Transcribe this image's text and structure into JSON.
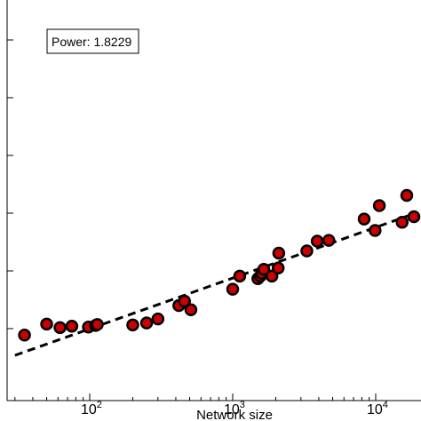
{
  "chart_data": {
    "type": "scatter",
    "xlabel": "Network size",
    "ylabel": "",
    "x_scale": "log",
    "y_scale": "log",
    "xlim": [
      28,
      19000
    ],
    "xticks": [
      {
        "value": 100,
        "base": "10",
        "exp": "2"
      },
      {
        "value": 1000,
        "base": "10",
        "exp": "3"
      },
      {
        "value": 10000,
        "base": "10",
        "exp": "4"
      }
    ],
    "grid": false,
    "annotation": "Power: 1.8229",
    "fit_line": {
      "style": "dashed",
      "color": "#000000"
    },
    "marker_color": "#cc0000",
    "marker_edge_color": "#000000",
    "series": [
      {
        "points": [
          {
            "x": 35,
            "y": 40
          },
          {
            "x": 50,
            "y": 62
          },
          {
            "x": 62,
            "y": 54
          },
          {
            "x": 75,
            "y": 57
          },
          {
            "x": 98,
            "y": 55
          },
          {
            "x": 110,
            "y": 59
          },
          {
            "x": 113,
            "y": 61
          },
          {
            "x": 200,
            "y": 60
          },
          {
            "x": 250,
            "y": 65
          },
          {
            "x": 300,
            "y": 76
          },
          {
            "x": 420,
            "y": 130
          },
          {
            "x": 460,
            "y": 155
          },
          {
            "x": 510,
            "y": 110
          },
          {
            "x": 1000,
            "y": 250
          },
          {
            "x": 1120,
            "y": 420
          },
          {
            "x": 1500,
            "y": 380
          },
          {
            "x": 1560,
            "y": 420
          },
          {
            "x": 1600,
            "y": 470
          },
          {
            "x": 1650,
            "y": 550
          },
          {
            "x": 1880,
            "y": 420
          },
          {
            "x": 2080,
            "y": 580
          },
          {
            "x": 2100,
            "y": 1050
          },
          {
            "x": 3300,
            "y": 1150
          },
          {
            "x": 3900,
            "y": 1700
          },
          {
            "x": 4700,
            "y": 1750
          },
          {
            "x": 8300,
            "y": 4100
          },
          {
            "x": 9900,
            "y": 2600
          },
          {
            "x": 10600,
            "y": 7000
          },
          {
            "x": 15300,
            "y": 3600
          },
          {
            "x": 16500,
            "y": 10500
          },
          {
            "x": 18500,
            "y": 4500
          }
        ]
      }
    ]
  }
}
